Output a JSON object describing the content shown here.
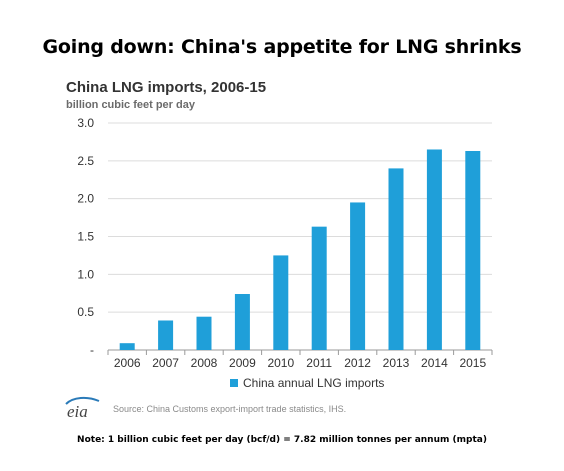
{
  "headline": "Going down: China's appetite for LNG shrinks",
  "note": "Note: 1  billion cubic feet per day (bcf/d) = 7.82 million tonnes per annum (mpta)",
  "source": "Source: China Customs export-import trade statistics, IHS.",
  "logo_text": "eia",
  "colors": {
    "bar": "#1f9fd9",
    "grid": "#dcdcdc",
    "axis": "#9a9a9a"
  },
  "chart_data": {
    "type": "bar",
    "title": "China LNG imports, 2006-15",
    "ylabel": "billion cubic feet per day",
    "xlabel": "",
    "categories": [
      "2006",
      "2007",
      "2008",
      "2009",
      "2010",
      "2011",
      "2012",
      "2013",
      "2014",
      "2015"
    ],
    "series": [
      {
        "name": "China annual LNG imports",
        "values": [
          0.09,
          0.39,
          0.44,
          0.74,
          1.25,
          1.63,
          1.95,
          2.4,
          2.65,
          2.63
        ]
      }
    ],
    "ylim": [
      0,
      3.0
    ],
    "yticks": [
      "-",
      "0.5",
      "1.0",
      "1.5",
      "2.0",
      "2.5",
      "3.0"
    ],
    "ytick_values": [
      0,
      0.5,
      1.0,
      1.5,
      2.0,
      2.5,
      3.0
    ],
    "grid": true,
    "legend": "bottom-center"
  }
}
